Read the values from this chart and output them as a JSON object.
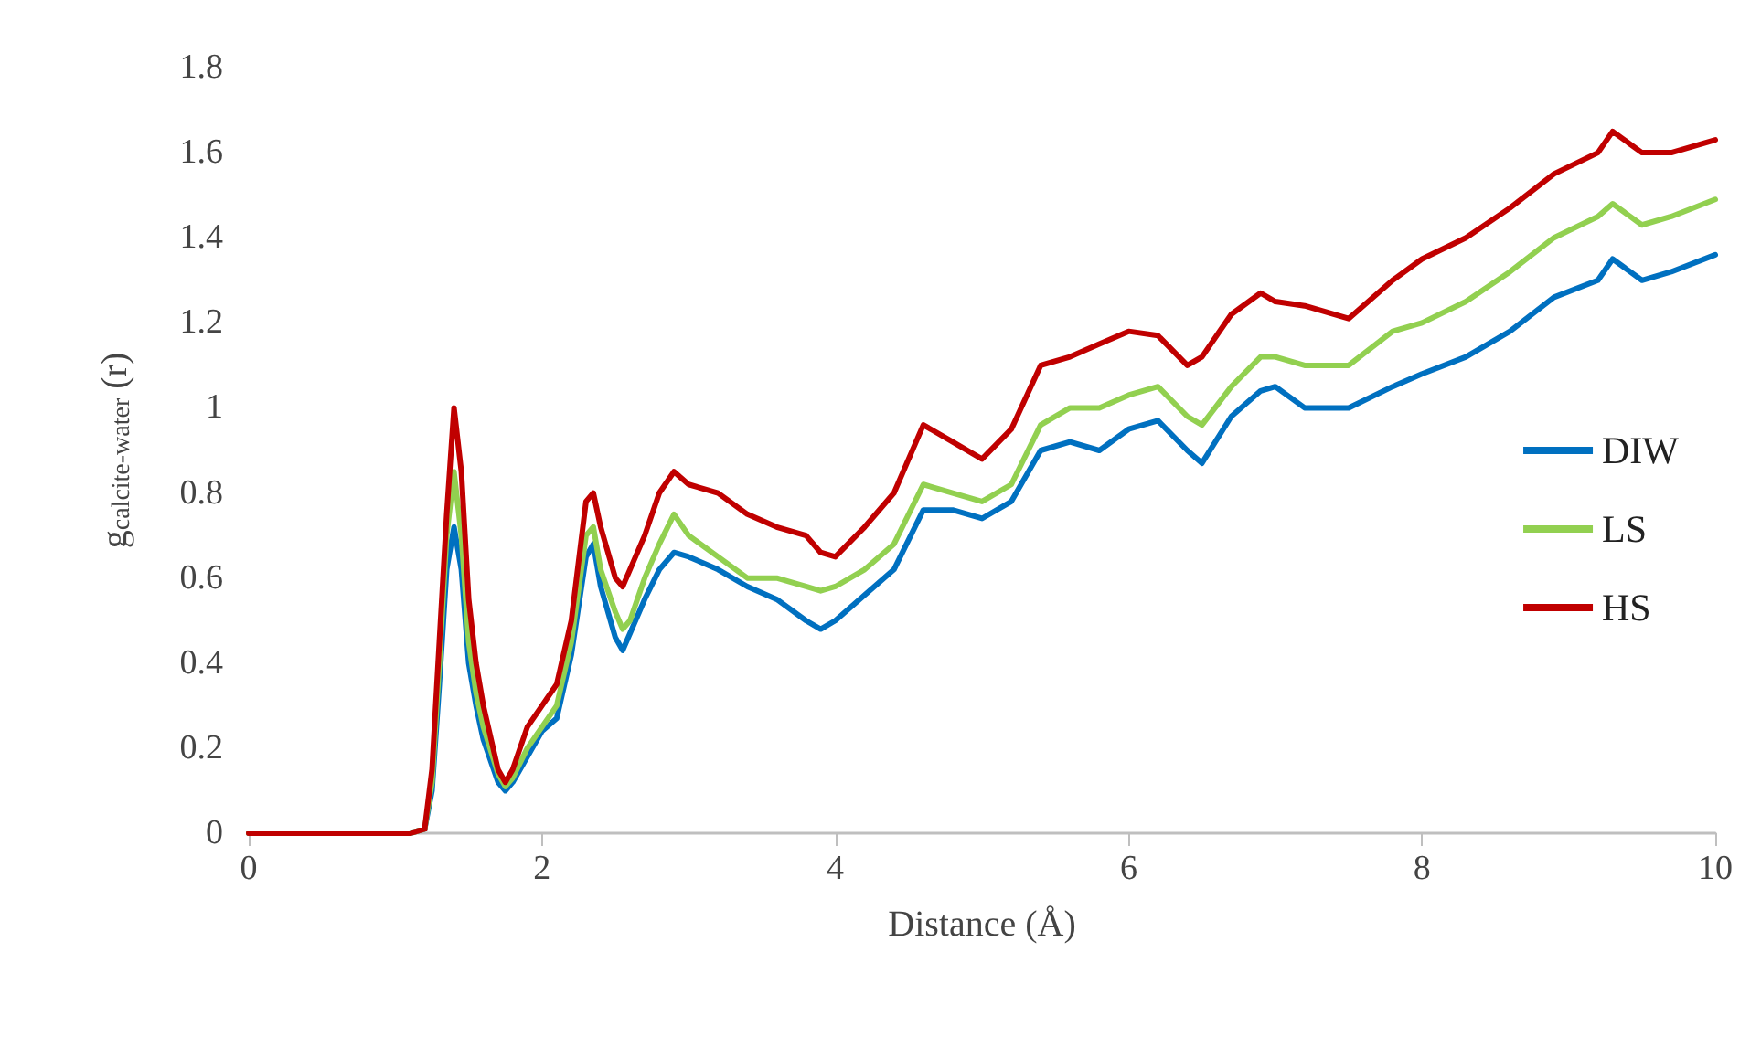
{
  "chart_data": {
    "type": "line",
    "xlabel": "Distance (Å)",
    "ylabel": "g$_{calcite-water}$ (r)",
    "x": [
      0,
      1.1,
      1.2,
      1.25,
      1.3,
      1.35,
      1.4,
      1.45,
      1.5,
      1.55,
      1.6,
      1.7,
      1.75,
      1.8,
      1.9,
      2.0,
      2.1,
      2.2,
      2.3,
      2.35,
      2.4,
      2.5,
      2.55,
      2.6,
      2.7,
      2.8,
      2.9,
      3.0,
      3.2,
      3.4,
      3.6,
      3.8,
      3.9,
      4.0,
      4.2,
      4.4,
      4.6,
      4.8,
      5.0,
      5.2,
      5.4,
      5.6,
      5.8,
      6.0,
      6.2,
      6.4,
      6.5,
      6.7,
      6.9,
      7.0,
      7.2,
      7.5,
      7.8,
      8.0,
      8.3,
      8.6,
      8.9,
      9.2,
      9.3,
      9.5,
      9.7,
      10
    ],
    "series": [
      {
        "name": "DIW",
        "color": "#0070c0",
        "values": [
          0,
          0,
          0.01,
          0.1,
          0.35,
          0.62,
          0.72,
          0.62,
          0.4,
          0.3,
          0.22,
          0.12,
          0.1,
          0.12,
          0.18,
          0.24,
          0.27,
          0.42,
          0.65,
          0.68,
          0.58,
          0.46,
          0.43,
          0.47,
          0.55,
          0.62,
          0.66,
          0.65,
          0.62,
          0.58,
          0.55,
          0.5,
          0.48,
          0.5,
          0.56,
          0.62,
          0.76,
          0.76,
          0.74,
          0.78,
          0.9,
          0.92,
          0.9,
          0.95,
          0.97,
          0.9,
          0.87,
          0.98,
          1.04,
          1.05,
          1.0,
          1.0,
          1.05,
          1.08,
          1.12,
          1.18,
          1.26,
          1.3,
          1.35,
          1.3,
          1.32,
          1.36
        ]
      },
      {
        "name": "LS",
        "color": "#92d050",
        "values": [
          0,
          0,
          0.01,
          0.12,
          0.4,
          0.7,
          0.85,
          0.7,
          0.45,
          0.33,
          0.25,
          0.14,
          0.11,
          0.13,
          0.2,
          0.25,
          0.3,
          0.45,
          0.7,
          0.72,
          0.62,
          0.52,
          0.48,
          0.5,
          0.6,
          0.68,
          0.75,
          0.7,
          0.65,
          0.6,
          0.6,
          0.58,
          0.57,
          0.58,
          0.62,
          0.68,
          0.82,
          0.8,
          0.78,
          0.82,
          0.96,
          1.0,
          1.0,
          1.03,
          1.05,
          0.98,
          0.96,
          1.05,
          1.12,
          1.12,
          1.1,
          1.1,
          1.18,
          1.2,
          1.25,
          1.32,
          1.4,
          1.45,
          1.48,
          1.43,
          1.45,
          1.49
        ]
      },
      {
        "name": "HS",
        "color": "#c00000",
        "values": [
          0,
          0,
          0.01,
          0.15,
          0.45,
          0.75,
          1.0,
          0.85,
          0.55,
          0.4,
          0.3,
          0.15,
          0.12,
          0.15,
          0.25,
          0.3,
          0.35,
          0.5,
          0.78,
          0.8,
          0.72,
          0.6,
          0.58,
          0.62,
          0.7,
          0.8,
          0.85,
          0.82,
          0.8,
          0.75,
          0.72,
          0.7,
          0.66,
          0.65,
          0.72,
          0.8,
          0.96,
          0.92,
          0.88,
          0.95,
          1.1,
          1.12,
          1.15,
          1.18,
          1.17,
          1.1,
          1.12,
          1.22,
          1.27,
          1.25,
          1.24,
          1.21,
          1.3,
          1.35,
          1.4,
          1.47,
          1.55,
          1.6,
          1.65,
          1.6,
          1.6,
          1.63
        ]
      }
    ],
    "xlim": [
      0,
      10
    ],
    "xticks": [
      0,
      2,
      4,
      6,
      8,
      10
    ],
    "ylim": [
      0,
      1.8
    ],
    "yticks": [
      0,
      {
        "value": 0.2,
        "label": "0.2"
      },
      {
        "value": 0.4,
        "label": "0.4"
      },
      {
        "value": 0.6,
        "label": "0.6"
      },
      {
        "value": 0.8,
        "label": "0.8"
      },
      1,
      {
        "value": 1.2,
        "label": "1.2"
      },
      {
        "value": 1.4,
        "label": "1.4"
      },
      {
        "value": 1.6,
        "label": "1.6"
      },
      {
        "value": 1.8,
        "label": "1.8"
      }
    ],
    "grid": false,
    "legend": "right",
    "marker": "none",
    "line_style": "solid"
  }
}
